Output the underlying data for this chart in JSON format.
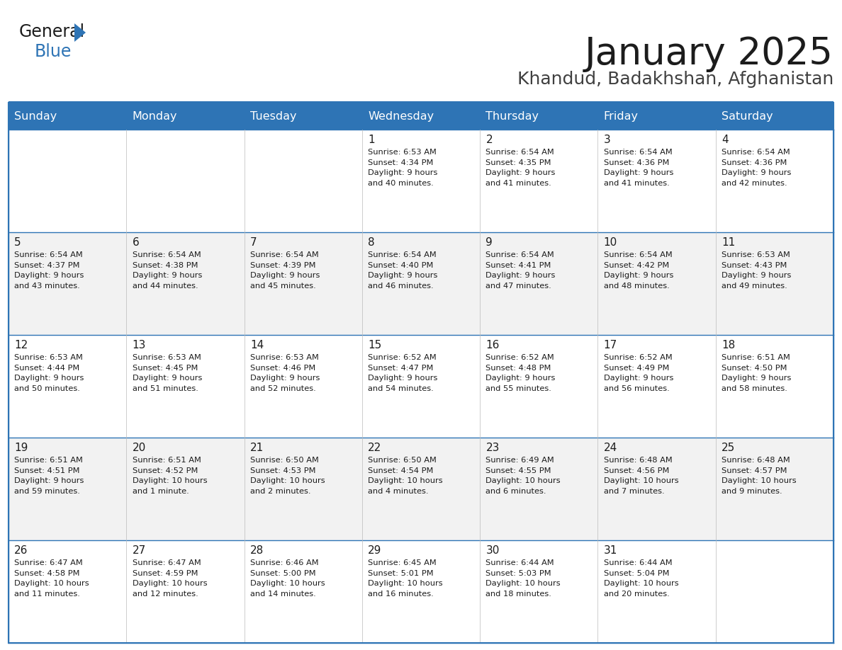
{
  "title": "January 2025",
  "subtitle": "Khandud, Badakhshan, Afghanistan",
  "header_bg": "#2E74B5",
  "header_text": "#FFFFFF",
  "row_bg_odd": "#FFFFFF",
  "row_bg_even": "#F2F2F2",
  "cell_border": "#2E74B5",
  "day_names": [
    "Sunday",
    "Monday",
    "Tuesday",
    "Wednesday",
    "Thursday",
    "Friday",
    "Saturday"
  ],
  "days": [
    {
      "day": 1,
      "col": 3,
      "row": 0,
      "sunrise": "6:53 AM",
      "sunset": "4:34 PM",
      "daylight_h": "9 hours",
      "daylight_m": "40 minutes."
    },
    {
      "day": 2,
      "col": 4,
      "row": 0,
      "sunrise": "6:54 AM",
      "sunset": "4:35 PM",
      "daylight_h": "9 hours",
      "daylight_m": "41 minutes."
    },
    {
      "day": 3,
      "col": 5,
      "row": 0,
      "sunrise": "6:54 AM",
      "sunset": "4:36 PM",
      "daylight_h": "9 hours",
      "daylight_m": "41 minutes."
    },
    {
      "day": 4,
      "col": 6,
      "row": 0,
      "sunrise": "6:54 AM",
      "sunset": "4:36 PM",
      "daylight_h": "9 hours",
      "daylight_m": "42 minutes."
    },
    {
      "day": 5,
      "col": 0,
      "row": 1,
      "sunrise": "6:54 AM",
      "sunset": "4:37 PM",
      "daylight_h": "9 hours",
      "daylight_m": "43 minutes."
    },
    {
      "day": 6,
      "col": 1,
      "row": 1,
      "sunrise": "6:54 AM",
      "sunset": "4:38 PM",
      "daylight_h": "9 hours",
      "daylight_m": "44 minutes."
    },
    {
      "day": 7,
      "col": 2,
      "row": 1,
      "sunrise": "6:54 AM",
      "sunset": "4:39 PM",
      "daylight_h": "9 hours",
      "daylight_m": "45 minutes."
    },
    {
      "day": 8,
      "col": 3,
      "row": 1,
      "sunrise": "6:54 AM",
      "sunset": "4:40 PM",
      "daylight_h": "9 hours",
      "daylight_m": "46 minutes."
    },
    {
      "day": 9,
      "col": 4,
      "row": 1,
      "sunrise": "6:54 AM",
      "sunset": "4:41 PM",
      "daylight_h": "9 hours",
      "daylight_m": "47 minutes."
    },
    {
      "day": 10,
      "col": 5,
      "row": 1,
      "sunrise": "6:54 AM",
      "sunset": "4:42 PM",
      "daylight_h": "9 hours",
      "daylight_m": "48 minutes."
    },
    {
      "day": 11,
      "col": 6,
      "row": 1,
      "sunrise": "6:53 AM",
      "sunset": "4:43 PM",
      "daylight_h": "9 hours",
      "daylight_m": "49 minutes."
    },
    {
      "day": 12,
      "col": 0,
      "row": 2,
      "sunrise": "6:53 AM",
      "sunset": "4:44 PM",
      "daylight_h": "9 hours",
      "daylight_m": "50 minutes."
    },
    {
      "day": 13,
      "col": 1,
      "row": 2,
      "sunrise": "6:53 AM",
      "sunset": "4:45 PM",
      "daylight_h": "9 hours",
      "daylight_m": "51 minutes."
    },
    {
      "day": 14,
      "col": 2,
      "row": 2,
      "sunrise": "6:53 AM",
      "sunset": "4:46 PM",
      "daylight_h": "9 hours",
      "daylight_m": "52 minutes."
    },
    {
      "day": 15,
      "col": 3,
      "row": 2,
      "sunrise": "6:52 AM",
      "sunset": "4:47 PM",
      "daylight_h": "9 hours",
      "daylight_m": "54 minutes."
    },
    {
      "day": 16,
      "col": 4,
      "row": 2,
      "sunrise": "6:52 AM",
      "sunset": "4:48 PM",
      "daylight_h": "9 hours",
      "daylight_m": "55 minutes."
    },
    {
      "day": 17,
      "col": 5,
      "row": 2,
      "sunrise": "6:52 AM",
      "sunset": "4:49 PM",
      "daylight_h": "9 hours",
      "daylight_m": "56 minutes."
    },
    {
      "day": 18,
      "col": 6,
      "row": 2,
      "sunrise": "6:51 AM",
      "sunset": "4:50 PM",
      "daylight_h": "9 hours",
      "daylight_m": "58 minutes."
    },
    {
      "day": 19,
      "col": 0,
      "row": 3,
      "sunrise": "6:51 AM",
      "sunset": "4:51 PM",
      "daylight_h": "9 hours",
      "daylight_m": "59 minutes."
    },
    {
      "day": 20,
      "col": 1,
      "row": 3,
      "sunrise": "6:51 AM",
      "sunset": "4:52 PM",
      "daylight_h": "10 hours",
      "daylight_m": "1 minute."
    },
    {
      "day": 21,
      "col": 2,
      "row": 3,
      "sunrise": "6:50 AM",
      "sunset": "4:53 PM",
      "daylight_h": "10 hours",
      "daylight_m": "2 minutes."
    },
    {
      "day": 22,
      "col": 3,
      "row": 3,
      "sunrise": "6:50 AM",
      "sunset": "4:54 PM",
      "daylight_h": "10 hours",
      "daylight_m": "4 minutes."
    },
    {
      "day": 23,
      "col": 4,
      "row": 3,
      "sunrise": "6:49 AM",
      "sunset": "4:55 PM",
      "daylight_h": "10 hours",
      "daylight_m": "6 minutes."
    },
    {
      "day": 24,
      "col": 5,
      "row": 3,
      "sunrise": "6:48 AM",
      "sunset": "4:56 PM",
      "daylight_h": "10 hours",
      "daylight_m": "7 minutes."
    },
    {
      "day": 25,
      "col": 6,
      "row": 3,
      "sunrise": "6:48 AM",
      "sunset": "4:57 PM",
      "daylight_h": "10 hours",
      "daylight_m": "9 minutes."
    },
    {
      "day": 26,
      "col": 0,
      "row": 4,
      "sunrise": "6:47 AM",
      "sunset": "4:58 PM",
      "daylight_h": "10 hours",
      "daylight_m": "11 minutes."
    },
    {
      "day": 27,
      "col": 1,
      "row": 4,
      "sunrise": "6:47 AM",
      "sunset": "4:59 PM",
      "daylight_h": "10 hours",
      "daylight_m": "12 minutes."
    },
    {
      "day": 28,
      "col": 2,
      "row": 4,
      "sunrise": "6:46 AM",
      "sunset": "5:00 PM",
      "daylight_h": "10 hours",
      "daylight_m": "14 minutes."
    },
    {
      "day": 29,
      "col": 3,
      "row": 4,
      "sunrise": "6:45 AM",
      "sunset": "5:01 PM",
      "daylight_h": "10 hours",
      "daylight_m": "16 minutes."
    },
    {
      "day": 30,
      "col": 4,
      "row": 4,
      "sunrise": "6:44 AM",
      "sunset": "5:03 PM",
      "daylight_h": "10 hours",
      "daylight_m": "18 minutes."
    },
    {
      "day": 31,
      "col": 5,
      "row": 4,
      "sunrise": "6:44 AM",
      "sunset": "5:04 PM",
      "daylight_h": "10 hours",
      "daylight_m": "20 minutes."
    }
  ],
  "num_rows": 5,
  "num_cols": 7,
  "fig_width": 11.88,
  "fig_height": 9.18,
  "dpi": 100
}
